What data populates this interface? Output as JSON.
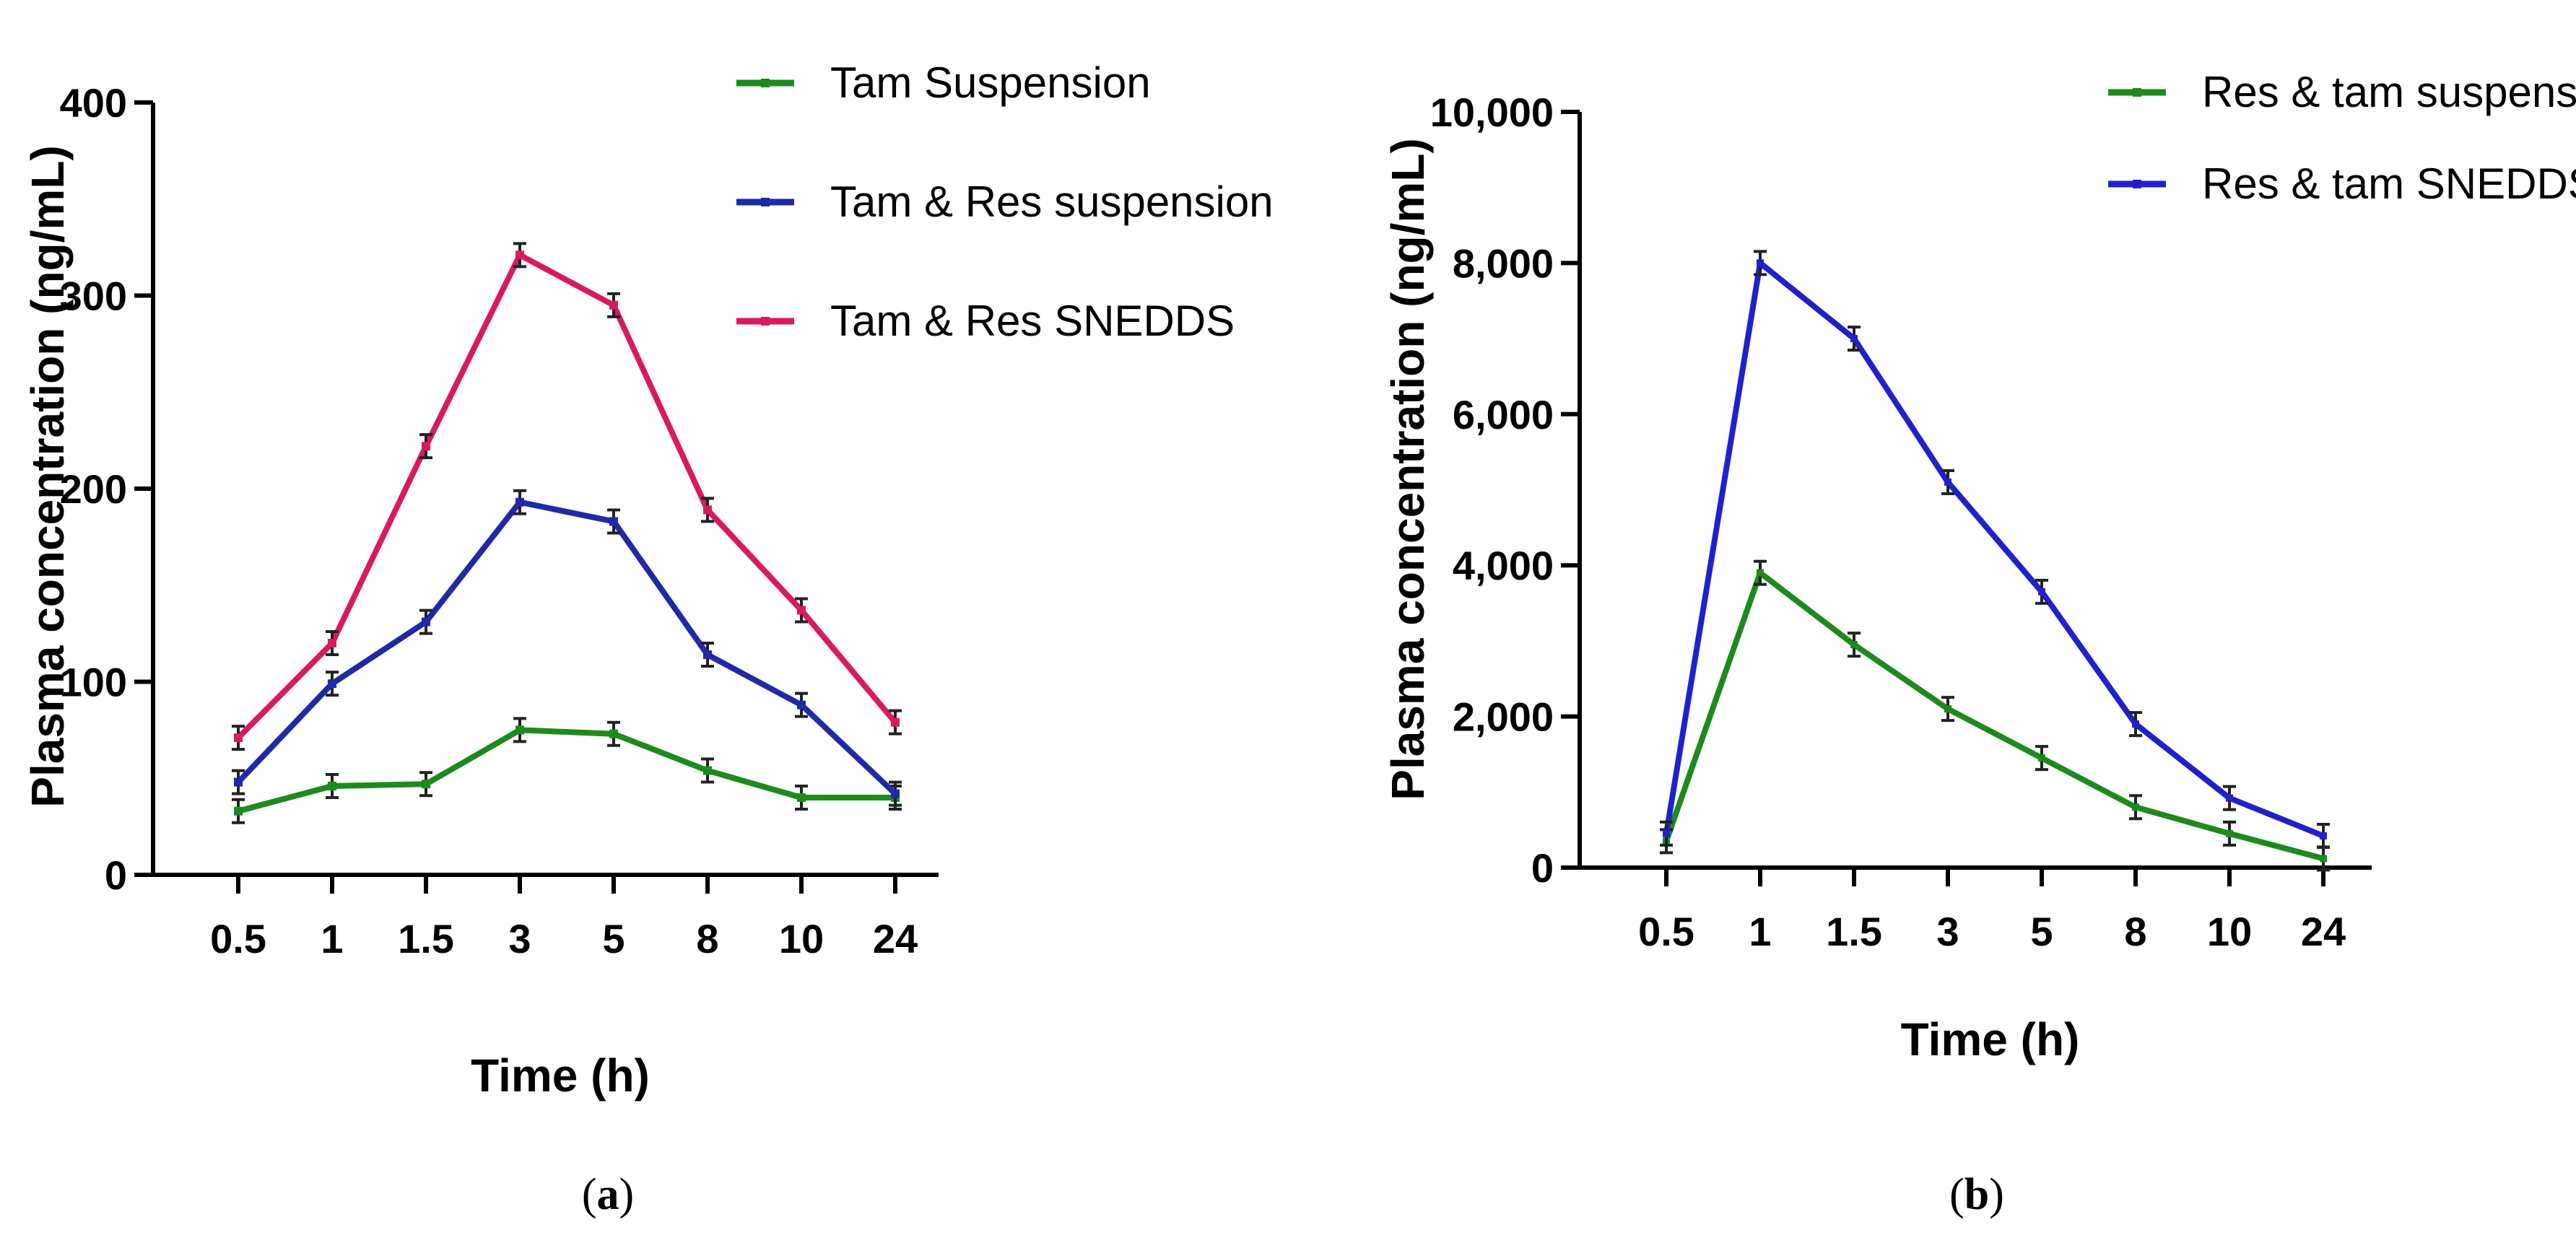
{
  "chart_data": [
    {
      "panel": "(a)",
      "panel_letter": "a",
      "type": "line",
      "xlabel": "Time (h)",
      "ylabel": "Plasma concentration (ng/mL)",
      "categories": [
        "0.5",
        "1",
        "1.5",
        "3",
        "5",
        "8",
        "10",
        "24"
      ],
      "ylim": [
        0,
        400
      ],
      "yticks": [
        "0",
        "100",
        "200",
        "300",
        "400"
      ],
      "legend_position": "top-right",
      "error_bars": true,
      "series": [
        {
          "name": "Tam Suspension",
          "color": "#1e8a1e",
          "values": [
            33,
            46,
            47,
            75,
            73,
            54,
            40,
            40
          ]
        },
        {
          "name": "Tam & Res suspension",
          "color": "#1f2aa8",
          "values": [
            48,
            99,
            131,
            193,
            183,
            114,
            88,
            42
          ]
        },
        {
          "name": "Tam & Res SNEDDS",
          "color": "#d81b60",
          "values": [
            71,
            120,
            222,
            321,
            295,
            189,
            137,
            79
          ]
        }
      ]
    },
    {
      "panel": "(b)",
      "panel_letter": "b",
      "type": "line",
      "xlabel": "Time (h)",
      "ylabel": "Plasma concentration (ng/mL)",
      "categories": [
        "0.5",
        "1",
        "1.5",
        "3",
        "5",
        "8",
        "10",
        "24"
      ],
      "ylim": [
        0,
        10000
      ],
      "yticks": [
        "0",
        "2,000",
        "4,000",
        "6,000",
        "8,000",
        "10,000"
      ],
      "legend_position": "top-right",
      "error_bars": true,
      "series": [
        {
          "name": "Res & tam suspension",
          "color": "#1e8a1e",
          "values": [
            350,
            3900,
            2950,
            2100,
            1450,
            800,
            450,
            120
          ]
        },
        {
          "name": "Res & tam SNEDDS",
          "color": "#1f22cc",
          "values": [
            450,
            8000,
            7000,
            5100,
            3650,
            1900,
            920,
            420
          ]
        }
      ]
    }
  ]
}
